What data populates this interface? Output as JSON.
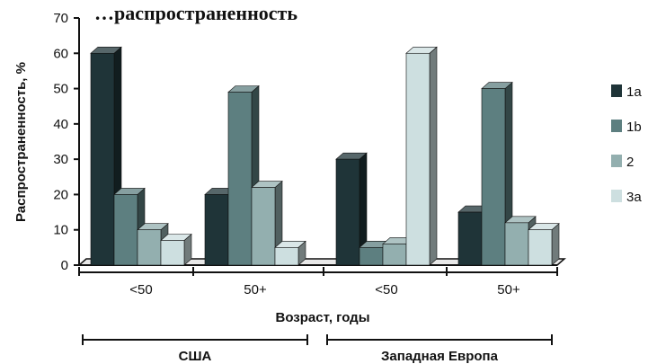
{
  "chart_data": {
    "type": "bar",
    "title": "…распространенность",
    "ylabel": "Распространенность, %",
    "xlabel": "Возраст, годы",
    "ylim": [
      0,
      70
    ],
    "yticks": [
      "0",
      "10",
      "20",
      "30",
      "40",
      "50",
      "60",
      "70"
    ],
    "categories": [
      "<50",
      "50+",
      "<50",
      "50+"
    ],
    "groups": [
      {
        "label": "США",
        "categories": [
          0,
          1
        ]
      },
      {
        "label": "Западная Европа",
        "categories": [
          2,
          3
        ]
      }
    ],
    "series": [
      {
        "name": "1a",
        "color": "#1f3438",
        "values": [
          60,
          20,
          30,
          15
        ]
      },
      {
        "name": "1b",
        "color": "#5d7f80",
        "values": [
          20,
          49,
          5,
          50
        ]
      },
      {
        "name": "2",
        "color": "#93afaf",
        "values": [
          10,
          22,
          6,
          12
        ]
      },
      {
        "name": "3a",
        "color": "#cddfe0",
        "values": [
          7,
          5,
          60,
          10
        ]
      }
    ],
    "legend_position": "right",
    "grid": false
  }
}
